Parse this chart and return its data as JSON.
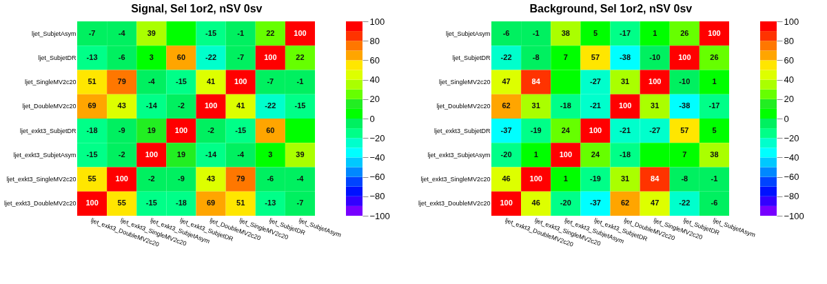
{
  "chart_data": [
    {
      "type": "heatmap",
      "title": "Signal, Sel 1or2, nSV 0sv",
      "categories": [
        "ljet_exkt3_DoubleMV2c20",
        "ljet_exkt3_SingleMV2c20",
        "ljet_exkt3_SubjetAsym",
        "ljet_exkt3_SubjetDR",
        "ljet_DoubleMV2c20",
        "ljet_SingleMV2c20",
        "ljet_SubjetDR",
        "ljet_SubjetAsym"
      ],
      "y_categories": [
        "ljet_SubjetAsym",
        "ljet_SubjetDR",
        "ljet_SingleMV2c20",
        "ljet_DoubleMV2c20",
        "ljet_exkt3_SubjetDR",
        "ljet_exkt3_SubjetAsym",
        "ljet_exkt3_SingleMV2c20",
        "ljet_exkt3_DoubleMV2c20"
      ],
      "cells": [
        [
          -7,
          -4,
          39,
          0,
          -15,
          -1,
          22,
          100
        ],
        [
          -13,
          -6,
          3,
          60,
          -22,
          -7,
          100,
          22
        ],
        [
          51,
          79,
          -4,
          -15,
          41,
          100,
          -7,
          -1
        ],
        [
          69,
          43,
          -14,
          -2,
          100,
          41,
          -22,
          -15
        ],
        [
          -18,
          -9,
          19,
          100,
          -2,
          -15,
          60,
          0
        ],
        [
          -15,
          -2,
          100,
          19,
          -14,
          -4,
          3,
          39
        ],
        [
          55,
          100,
          -2,
          -9,
          43,
          79,
          -6,
          -4
        ],
        [
          100,
          55,
          -15,
          -18,
          69,
          51,
          -13,
          -7
        ]
      ],
      "cell_labels": [
        [
          "-7",
          "-4",
          "39",
          null,
          "-15",
          "-1",
          "22",
          "100"
        ],
        [
          "-13",
          "-6",
          "3",
          "60",
          "-22",
          "-7",
          "100",
          "22"
        ],
        [
          "51",
          "79",
          "-4",
          "-15",
          "41",
          "100",
          "-7",
          "-1"
        ],
        [
          "69",
          "43",
          "-14",
          "-2",
          "100",
          "41",
          "-22",
          "-15"
        ],
        [
          "-18",
          "-9",
          "19",
          "100",
          "-2",
          "-15",
          "60",
          null
        ],
        [
          "-15",
          "-2",
          "100",
          "19",
          "-14",
          "-4",
          "3",
          "39"
        ],
        [
          "55",
          "100",
          "-2",
          "-9",
          "43",
          "79",
          "-6",
          "-4"
        ],
        [
          "100",
          "55",
          "-15",
          "-18",
          "69",
          "51",
          "-13",
          "-7"
        ]
      ],
      "clim": [
        -100,
        100
      ],
      "cticks": [
        -100,
        -80,
        -60,
        -40,
        -20,
        0,
        20,
        40,
        60,
        80,
        100
      ],
      "colors": [
        "#7700ff",
        "#3300ff",
        "#0011ff",
        "#0044ff",
        "#0088ff",
        "#00c8ff",
        "#00ffff",
        "#00ffcc",
        "#00ff88",
        "#00f060",
        "#00ff00",
        "#22ee22",
        "#66ff00",
        "#aaff00",
        "#ddff00",
        "#ffe600",
        "#ffa500",
        "#ff7700",
        "#ff3300",
        "#ff0000"
      ]
    },
    {
      "type": "heatmap",
      "title": "Background, Sel 1or2, nSV 0sv",
      "categories": [
        "ljet_exkt3_DoubleMV2c20",
        "ljet_exkt3_SingleMV2c20",
        "ljet_exkt3_SubjetAsym",
        "ljet_exkt3_SubjetDR",
        "ljet_DoubleMV2c20",
        "ljet_SingleMV2c20",
        "ljet_SubjetDR",
        "ljet_SubjetAsym"
      ],
      "y_categories": [
        "ljet_SubjetAsym",
        "ljet_SubjetDR",
        "ljet_SingleMV2c20",
        "ljet_DoubleMV2c20",
        "ljet_exkt3_SubjetDR",
        "ljet_exkt3_SubjetAsym",
        "ljet_exkt3_SingleMV2c20",
        "ljet_exkt3_DoubleMV2c20"
      ],
      "cells": [
        [
          -6,
          -1,
          38,
          5,
          -17,
          1,
          26,
          100
        ],
        [
          -22,
          -8,
          7,
          57,
          -38,
          -10,
          100,
          26
        ],
        [
          47,
          84,
          0,
          -27,
          31,
          100,
          -10,
          1
        ],
        [
          62,
          31,
          -18,
          -21,
          100,
          31,
          -38,
          -17
        ],
        [
          -37,
          -19,
          24,
          100,
          -21,
          -27,
          57,
          5
        ],
        [
          -20,
          1,
          100,
          24,
          -18,
          0,
          7,
          38
        ],
        [
          46,
          100,
          1,
          -19,
          31,
          84,
          -8,
          -1
        ],
        [
          100,
          46,
          -20,
          -37,
          62,
          47,
          -22,
          -6
        ]
      ],
      "cell_labels": [
        [
          "-6",
          "-1",
          "38",
          "5",
          "-17",
          "1",
          "26",
          "100"
        ],
        [
          "-22",
          "-8",
          "7",
          "57",
          "-38",
          "-10",
          "100",
          "26"
        ],
        [
          "47",
          "84",
          null,
          "-27",
          "31",
          "100",
          "-10",
          "1"
        ],
        [
          "62",
          "31",
          "-18",
          "-21",
          "100",
          "31",
          "-38",
          "-17"
        ],
        [
          "-37",
          "-19",
          "24",
          "100",
          "-21",
          "-27",
          "57",
          "5"
        ],
        [
          "-20",
          "1",
          "100",
          "24",
          "-18",
          null,
          "7",
          "38"
        ],
        [
          "46",
          "100",
          "1",
          "-19",
          "31",
          "84",
          "-8",
          "-1"
        ],
        [
          "100",
          "46",
          "-20",
          "-37",
          "62",
          "47",
          "-22",
          "-6"
        ]
      ],
      "clim": [
        -100,
        100
      ],
      "cticks": [
        -100,
        -80,
        -60,
        -40,
        -20,
        0,
        20,
        40,
        60,
        80,
        100
      ],
      "colors": [
        "#7700ff",
        "#3300ff",
        "#0011ff",
        "#0044ff",
        "#0088ff",
        "#00c8ff",
        "#00ffff",
        "#00ffcc",
        "#00ff88",
        "#00f060",
        "#00ff00",
        "#22ee22",
        "#66ff00",
        "#aaff00",
        "#ddff00",
        "#ffe600",
        "#ffa500",
        "#ff7700",
        "#ff3300",
        "#ff0000"
      ]
    }
  ]
}
